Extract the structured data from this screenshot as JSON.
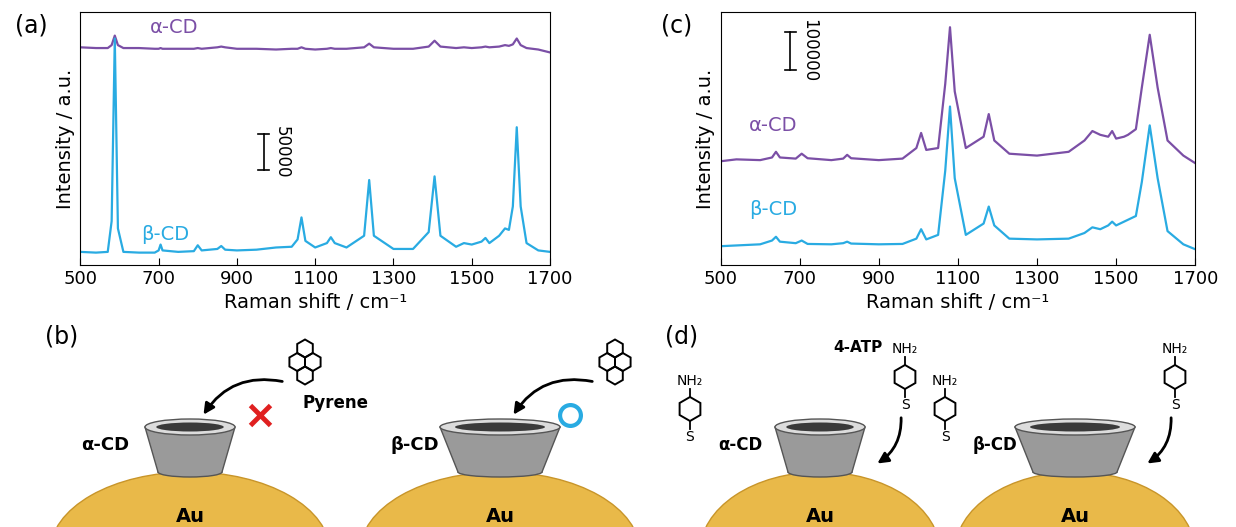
{
  "chart_data": [
    {
      "type": "line",
      "panel_label": "(a)",
      "x_label": "Raman shift / cm⁻¹",
      "y_label": "Intensity / a.u.",
      "x": [
        500,
        540,
        570,
        580,
        588,
        596,
        610,
        650,
        690,
        700,
        705,
        710,
        750,
        790,
        800,
        810,
        850,
        860,
        870,
        900,
        950,
        1000,
        1040,
        1055,
        1065,
        1075,
        1100,
        1130,
        1140,
        1150,
        1180,
        1225,
        1238,
        1250,
        1300,
        1350,
        1390,
        1405,
        1420,
        1460,
        1480,
        1500,
        1525,
        1535,
        1545,
        1570,
        1585,
        1595,
        1605,
        1615,
        1625,
        1640,
        1670,
        1700
      ],
      "xlim": [
        500,
        1700
      ],
      "xticks": [
        500,
        700,
        900,
        1100,
        1300,
        1500,
        1700
      ],
      "ylim": [
        0,
        345000
      ],
      "tick_labels": "x",
      "scale_bar": 50000,
      "series": [
        {
          "name": "α-CD",
          "color": "#7b4fa6",
          "values": [
            297000,
            296000,
            296000,
            300000,
            313000,
            300000,
            296000,
            296000,
            295000,
            295000,
            296000,
            295000,
            295000,
            295000,
            296000,
            295000,
            297000,
            298000,
            297000,
            295000,
            295000,
            294000,
            295000,
            295000,
            297000,
            295000,
            294000,
            295000,
            296000,
            295000,
            295000,
            297000,
            302000,
            297000,
            295000,
            295000,
            298000,
            306000,
            298000,
            296000,
            297000,
            296000,
            297000,
            298000,
            297000,
            298000,
            300000,
            299000,
            301000,
            309000,
            300000,
            296000,
            294000,
            290000
          ]
        },
        {
          "name": "β-CD",
          "color": "#29abe2",
          "values": [
            18000,
            17000,
            18000,
            60000,
            309000,
            50000,
            18000,
            17000,
            17000,
            20000,
            28000,
            20000,
            18000,
            19000,
            27000,
            20000,
            22000,
            26000,
            21000,
            20000,
            21000,
            24000,
            25000,
            35000,
            65000,
            33000,
            24000,
            30000,
            38000,
            30000,
            24000,
            40000,
            116000,
            40000,
            22000,
            22000,
            45000,
            121000,
            40000,
            25000,
            30000,
            28000,
            32000,
            37000,
            30000,
            40000,
            50000,
            48000,
            80000,
            188000,
            80000,
            30000,
            20000,
            18000
          ]
        }
      ]
    },
    {
      "type": "line",
      "panel_label": "(c)",
      "x_label": "Raman shift / cm⁻¹",
      "y_label": "Intensity / a.u.",
      "x": [
        500,
        540,
        600,
        630,
        640,
        650,
        690,
        705,
        720,
        780,
        810,
        820,
        830,
        900,
        960,
        995,
        1007,
        1020,
        1050,
        1068,
        1080,
        1092,
        1120,
        1165,
        1178,
        1192,
        1230,
        1300,
        1380,
        1420,
        1440,
        1460,
        1480,
        1490,
        1500,
        1520,
        1530,
        1550,
        1565,
        1585,
        1605,
        1630,
        1670,
        1700
      ],
      "xlim": [
        500,
        1700
      ],
      "xticks": [
        500,
        700,
        900,
        1100,
        1300,
        1500,
        1700
      ],
      "ylim": [
        0,
        670000
      ],
      "tick_labels": "x",
      "scale_bar": 100000,
      "series": [
        {
          "name": "α-CD",
          "color": "#7b4fa6",
          "values": [
            275000,
            280000,
            278000,
            285000,
            300000,
            285000,
            282000,
            295000,
            283000,
            278000,
            282000,
            292000,
            283000,
            278000,
            282000,
            310000,
            350000,
            305000,
            310000,
            480000,
            630000,
            460000,
            310000,
            340000,
            400000,
            330000,
            295000,
            290000,
            300000,
            330000,
            355000,
            345000,
            340000,
            355000,
            335000,
            340000,
            345000,
            360000,
            470000,
            610000,
            470000,
            330000,
            290000,
            270000
          ]
        },
        {
          "name": "β-CD",
          "color": "#29abe2",
          "values": [
            50000,
            52000,
            55000,
            65000,
            75000,
            62000,
            58000,
            65000,
            56000,
            55000,
            58000,
            62000,
            57000,
            55000,
            56000,
            70000,
            95000,
            68000,
            80000,
            250000,
            420000,
            230000,
            80000,
            110000,
            155000,
            105000,
            70000,
            68000,
            70000,
            85000,
            100000,
            95000,
            105000,
            115000,
            105000,
            115000,
            120000,
            130000,
            220000,
            370000,
            230000,
            90000,
            55000,
            42000
          ]
        }
      ]
    }
  ],
  "diagrams": [
    {
      "panel_label": "(b)",
      "molecule": "Pyrene",
      "substrate": "Au",
      "hosts": [
        {
          "name": "α-CD",
          "enters": false
        },
        {
          "name": "β-CD",
          "enters": true
        }
      ]
    },
    {
      "panel_label": "(d)",
      "molecule": "4-ATP",
      "amine": "NH₂",
      "thiol": "S",
      "substrate": "Au",
      "hosts": [
        {
          "name": "α-CD"
        },
        {
          "name": "β-CD"
        }
      ]
    }
  ]
}
